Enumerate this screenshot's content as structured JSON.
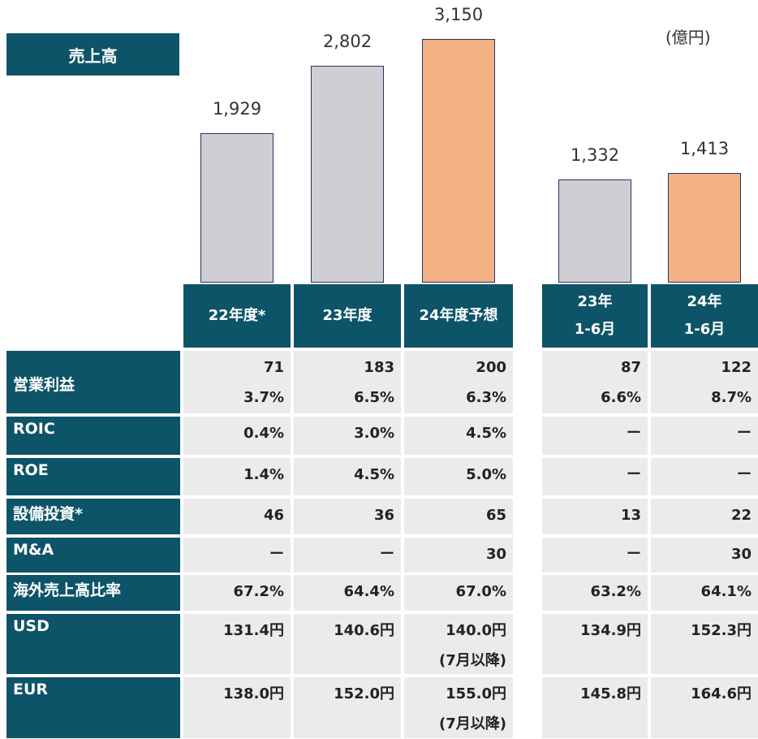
{
  "chart_data": {
    "type": "bar",
    "title": "売上高",
    "unit": "(億円)",
    "categories": [
      "22年度*",
      "23年度",
      "24年度予想",
      "23年\n1-6月",
      "24年\n1-6月"
    ],
    "values": [
      1929,
      2802,
      3150,
      1332,
      1413
    ],
    "value_labels": [
      "1,929",
      "2,802",
      "3,150",
      "1,332",
      "1,413"
    ],
    "colors": [
      "#d0ced3",
      "#d0ced3",
      "#f4b183",
      "#d0ced3",
      "#f4b183"
    ]
  },
  "table": {
    "rows": [
      {
        "label": "営業利益",
        "cells": [
          "71\n3.7%",
          "183\n6.5%",
          "200\n6.3%",
          "87\n6.6%",
          "122\n8.7%"
        ]
      },
      {
        "label": "ROIC",
        "cells": [
          "0.4%",
          "3.0%",
          "4.5%",
          "ー",
          "ー"
        ]
      },
      {
        "label": "ROE",
        "cells": [
          "1.4%",
          "4.5%",
          "5.0%",
          "ー",
          "ー"
        ]
      },
      {
        "label": "設備投資*",
        "cells": [
          "46",
          "36",
          "65",
          "13",
          "22"
        ]
      },
      {
        "label": "M&A",
        "cells": [
          "ー",
          "ー",
          "30",
          "ー",
          "30"
        ]
      },
      {
        "label": "海外売上高比率",
        "cells": [
          "67.2%",
          "64.4%",
          "67.0%",
          "63.2%",
          "64.1%"
        ]
      },
      {
        "label": "USD",
        "cells": [
          "131.4円",
          "140.6円",
          "140.0円\n(7月以降)",
          "134.9円",
          "152.3円"
        ]
      },
      {
        "label": "EUR",
        "cells": [
          "138.0円",
          "152.0円",
          "155.0円\n(7月以降)",
          "145.8円",
          "164.6円"
        ]
      }
    ]
  }
}
